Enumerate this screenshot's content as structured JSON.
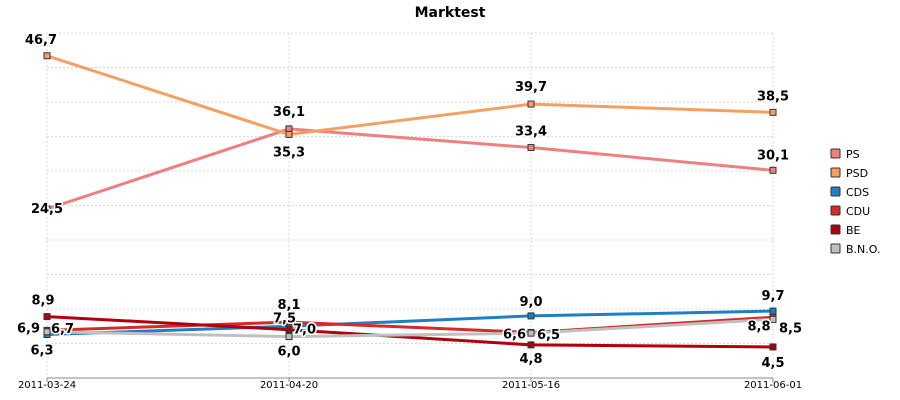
{
  "chart_data": {
    "type": "line",
    "title": "Marktest",
    "x": [
      "2011-03-24",
      "2011-04-20",
      "2011-05-16",
      "2011-06-01"
    ],
    "ylim": [
      0,
      50
    ],
    "grid": "horizontal dotted, vertical dotted",
    "legend_position": "right",
    "series": [
      {
        "name": "PS",
        "color": "#f07f7f",
        "values": [
          24.5,
          36.1,
          33.4,
          30.1
        ],
        "labels": [
          "24,5",
          "36,1",
          "33,4",
          "30,1"
        ]
      },
      {
        "name": "PSD",
        "color": "#f5a060",
        "values": [
          46.7,
          35.3,
          39.7,
          38.5
        ],
        "labels": [
          "46,7",
          "35,3",
          "39,7",
          "38,5"
        ]
      },
      {
        "name": "CDS",
        "color": "#1f7fc4",
        "values": [
          6.3,
          7.5,
          9.0,
          9.7
        ],
        "labels": [
          "6,3",
          "7,5",
          "9,0",
          "9,7"
        ]
      },
      {
        "name": "CDU",
        "color": "#d42a2a",
        "values": [
          6.9,
          8.1,
          6.6,
          8.8
        ],
        "labels": [
          "6,9",
          "8,1",
          "6,6",
          "8,8"
        ]
      },
      {
        "name": "BE",
        "color": "#b00010",
        "values": [
          8.9,
          7.0,
          4.8,
          4.5
        ],
        "labels": [
          "8,9",
          "7,0",
          "4,8",
          "4,5"
        ]
      },
      {
        "name": "B.N.O.",
        "color": "#c0c0c0",
        "values": [
          6.7,
          6.0,
          6.5,
          8.5
        ],
        "labels": [
          "6,7",
          "6,0",
          "6,5",
          "8,5"
        ]
      }
    ]
  }
}
